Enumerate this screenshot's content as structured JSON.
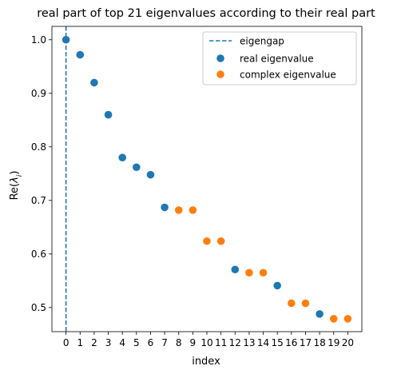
{
  "chart_data": {
    "type": "scatter",
    "title": "real part of top 21 eigenvalues according to their real part",
    "xlabel": "index",
    "ylabel_prefix": "Re(",
    "ylabel_symbol": "λ",
    "ylabel_subscript": "i",
    "ylabel_suffix": ")",
    "xlim": [
      -1,
      21
    ],
    "ylim": [
      0.455,
      1.025
    ],
    "xticks": [
      0,
      1,
      2,
      3,
      4,
      5,
      6,
      7,
      8,
      9,
      10,
      11,
      12,
      13,
      14,
      15,
      16,
      17,
      18,
      19,
      20
    ],
    "yticks": [
      0.5,
      0.6,
      0.7,
      0.8,
      0.9,
      1.0
    ],
    "ytick_labels": [
      "0.5",
      "0.6",
      "0.7",
      "0.8",
      "0.9",
      "1.0"
    ],
    "grid": false,
    "legend_position": "top-right",
    "eigengap": {
      "name": "eigengap",
      "x": 0,
      "color": "#1f77b4",
      "style": "dashed"
    },
    "series": [
      {
        "name": "real eigenvalue",
        "color": "#1f77b4",
        "points": [
          [
            0,
            1.0
          ],
          [
            1,
            0.972
          ],
          [
            2,
            0.92
          ],
          [
            3,
            0.86
          ],
          [
            4,
            0.78
          ],
          [
            5,
            0.762
          ],
          [
            6,
            0.748
          ],
          [
            7,
            0.687
          ],
          [
            12,
            0.571
          ],
          [
            15,
            0.541
          ],
          [
            18,
            0.488
          ]
        ]
      },
      {
        "name": "complex eigenvalue",
        "color": "#ff7f0e",
        "points": [
          [
            8,
            0.682
          ],
          [
            9,
            0.682
          ],
          [
            10,
            0.624
          ],
          [
            11,
            0.624
          ],
          [
            13,
            0.565
          ],
          [
            14,
            0.565
          ],
          [
            16,
            0.508
          ],
          [
            17,
            0.508
          ],
          [
            19,
            0.479
          ],
          [
            20,
            0.479
          ]
        ]
      }
    ]
  }
}
